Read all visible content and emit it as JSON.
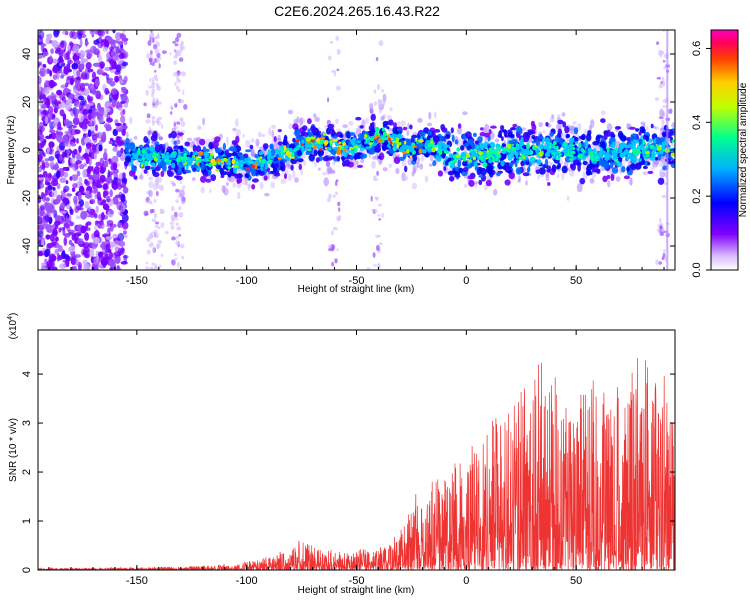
{
  "title": "C2E6.2024.265.16.43.R22",
  "chart_data": [
    {
      "type": "heatmap",
      "name": "spectrogram",
      "xlabel": "Height of straight line (km)",
      "ylabel": "Frequency (Hz)",
      "xlim": [
        -195,
        95
      ],
      "ylim": [
        -50,
        50
      ],
      "xticks": [
        -150,
        -100,
        -50,
        0,
        50
      ],
      "yticks": [
        -40,
        -20,
        0,
        20,
        40
      ],
      "colorbar": {
        "label": "Normalized spectral amplitude",
        "range": [
          0.0,
          0.65
        ],
        "ticks": [
          "0.0",
          "0.2",
          "0.4",
          "0.6"
        ],
        "tick_values": [
          0.0,
          0.2,
          0.4,
          0.6
        ],
        "colors": [
          "#ffffff",
          "#8000ff",
          "#0000ff",
          "#00c0ff",
          "#00ff80",
          "#ffff00",
          "#ff8000",
          "#ff0000",
          "#ff00ff"
        ]
      },
      "ridge": {
        "x": [
          -155,
          -140,
          -125,
          -110,
          -100,
          -90,
          -80,
          -70,
          -60,
          -50,
          -45,
          -40,
          -35,
          -30,
          -25,
          -20,
          -15,
          -10,
          -5,
          0,
          10,
          20,
          30,
          40,
          50,
          60,
          70,
          80,
          90
        ],
        "center": [
          -2,
          -3,
          -4,
          -5,
          -6,
          -4,
          0,
          3,
          2,
          1,
          4,
          6,
          5,
          2,
          0,
          3,
          1,
          -1,
          -3,
          -2,
          -3,
          0,
          -1,
          1,
          0,
          -2,
          -1,
          0,
          1
        ]
      }
    },
    {
      "type": "line",
      "name": "snr",
      "xlabel": "Height of straight line (km)",
      "ylabel": "SNR (10 * v/v)",
      "multiplier": "(x10",
      "multiplier_exp": "4",
      "multiplier_close": ")",
      "xlim": [
        -195,
        95
      ],
      "ylim": [
        0,
        4.9
      ],
      "xticks": [
        -150,
        -100,
        -50,
        0,
        50
      ],
      "yticks": [
        0,
        1,
        2,
        3,
        4
      ],
      "color": "#ee3333",
      "envelope": {
        "x": [
          -195,
          -150,
          -120,
          -105,
          -90,
          -80,
          -75,
          -60,
          -42,
          -30,
          -25,
          -10,
          0,
          10,
          20,
          30,
          40,
          50,
          60,
          70,
          80,
          90,
          95
        ],
        "y": [
          0.03,
          0.05,
          0.08,
          0.12,
          0.25,
          0.4,
          0.6,
          0.35,
          0.4,
          0.7,
          1.3,
          1.8,
          2.2,
          3.0,
          3.3,
          3.7,
          4.0,
          3.5,
          4.0,
          3.6,
          3.9,
          3.8,
          3.3
        ]
      }
    }
  ]
}
